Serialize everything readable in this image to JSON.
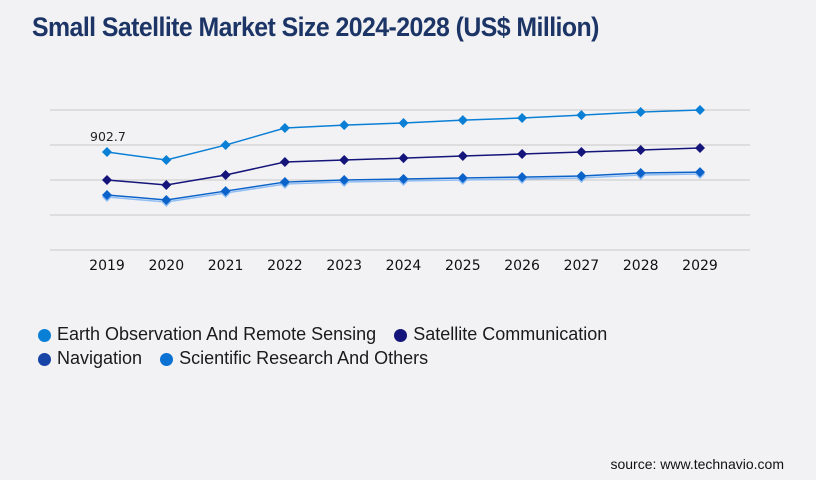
{
  "title": "Small Satellite Market Size 2024-2028 (US$ Million)",
  "source": "source: www.technavio.com",
  "chart_data": {
    "type": "line",
    "title": "Small Satellite Market Size 2024-2028 (US$ Million)",
    "xlabel": "",
    "ylabel": "",
    "x": [
      "2019",
      "2020",
      "2021",
      "2022",
      "2023",
      "2024",
      "2025",
      "2026",
      "2027",
      "2028",
      "2029"
    ],
    "ylim": [
      0,
      1290
    ],
    "grid": true,
    "legend_position": "bottom-left",
    "series": [
      {
        "name": "Earth Observation And Remote Sensing",
        "color": "#0a7fd6",
        "values": [
          902.7,
          829,
          967,
          1124,
          1151,
          1170,
          1197,
          1216,
          1243,
          1271,
          1290
        ]
      },
      {
        "name": "Satellite Communication",
        "color": "#14147a",
        "values": [
          645,
          599,
          691,
          811,
          829,
          847,
          866,
          884,
          903,
          921,
          940
        ]
      },
      {
        "name": "Navigation",
        "color": "#0b63c9",
        "values": [
          507,
          461,
          543,
          626,
          645,
          654,
          663,
          672,
          682,
          709,
          718
        ]
      },
      {
        "name": "Scientific Research And Others",
        "color": "#8fbdf4",
        "values": [
          488,
          442,
          525,
          608,
          626,
          636,
          645,
          654,
          663,
          691,
          700
        ]
      }
    ],
    "annotations": [
      {
        "x": "2019",
        "series": "Earth Observation And Remote Sensing",
        "text": "902.7"
      }
    ]
  },
  "legend": {
    "rows": [
      [
        {
          "label": "Earth Observation And Remote Sensing",
          "color": "#0a7fd6"
        },
        {
          "label": "Satellite Communication",
          "color": "#14147a"
        }
      ],
      [
        {
          "label": "Navigation",
          "color": "#1844a8"
        },
        {
          "label": "Scientific Research And Others",
          "color": "#0b72d4"
        }
      ]
    ]
  }
}
